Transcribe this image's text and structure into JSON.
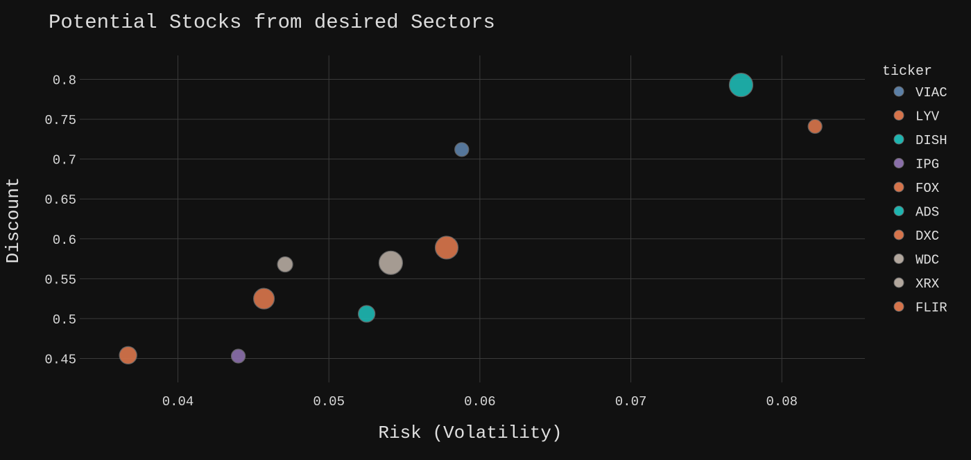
{
  "chart_data": {
    "type": "scatter",
    "title": "Potential Stocks from desired Sectors",
    "xlabel": "Risk (Volatility)",
    "ylabel": "Discount",
    "xlim": [
      0.0335,
      0.0855
    ],
    "ylim": [
      0.42,
      0.83
    ],
    "grid": true,
    "x_ticks": [
      0.04,
      0.05,
      0.06,
      0.07,
      0.08
    ],
    "x_tick_labels": [
      "0.04",
      "0.05",
      "0.06",
      "0.07",
      "0.08"
    ],
    "y_ticks": [
      0.45,
      0.5,
      0.55,
      0.6,
      0.65,
      0.7,
      0.75,
      0.8
    ],
    "y_tick_labels": [
      "0.45",
      "0.5",
      "0.55",
      "0.6",
      "0.65",
      "0.7",
      "0.75",
      "0.8"
    ],
    "legend": {
      "title": "ticker",
      "position": "right"
    },
    "series": [
      {
        "name": "VIAC",
        "x": 0.0588,
        "y": 0.712,
        "color": "#5b7fa6",
        "relative_size": 0.59
      },
      {
        "name": "LYV",
        "x": 0.0822,
        "y": 0.741,
        "color": "#d6744b",
        "relative_size": 0.59
      },
      {
        "name": "DISH",
        "x": 0.0773,
        "y": 0.793,
        "color": "#1eb5b0",
        "relative_size": 1.0
      },
      {
        "name": "IPG",
        "x": 0.044,
        "y": 0.453,
        "color": "#8a6fa9",
        "relative_size": 0.59
      },
      {
        "name": "FOX",
        "x": 0.0367,
        "y": 0.454,
        "color": "#d6744b",
        "relative_size": 0.74
      },
      {
        "name": "ADS",
        "x": 0.0525,
        "y": 0.506,
        "color": "#1eb5b0",
        "relative_size": 0.71
      },
      {
        "name": "DXC",
        "x": 0.0578,
        "y": 0.589,
        "color": "#d6744b",
        "relative_size": 0.97
      },
      {
        "name": "WDC",
        "x": 0.0541,
        "y": 0.57,
        "color": "#b2a79d",
        "relative_size": 1.0
      },
      {
        "name": "XRX",
        "x": 0.0471,
        "y": 0.568,
        "color": "#b2a79d",
        "relative_size": 0.65
      },
      {
        "name": "FLIR",
        "x": 0.0457,
        "y": 0.525,
        "color": "#d6744b",
        "relative_size": 0.88
      }
    ]
  }
}
